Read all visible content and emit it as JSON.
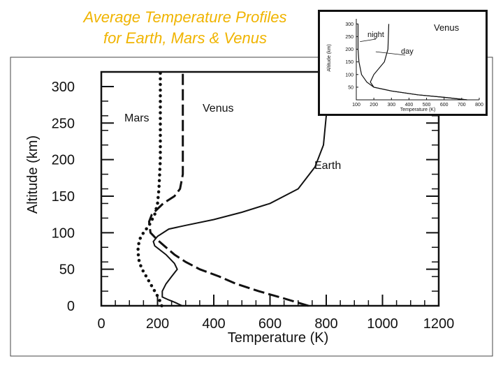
{
  "title_line1": "Average Temperature Profiles",
  "title_line2": "for Earth, Mars & Venus",
  "chart_data": [
    {
      "type": "line",
      "xlabel": "Temperature (K)",
      "ylabel": "Altitude (km)",
      "xlim": [
        0,
        1200
      ],
      "ylim": [
        0,
        320
      ],
      "xticks": [
        0,
        200,
        400,
        600,
        800,
        1000,
        1200
      ],
      "yticks": [
        0,
        50,
        100,
        150,
        200,
        250,
        300
      ],
      "series": [
        {
          "name": "Earth",
          "style": "solid",
          "x": [
            288,
            260,
            240,
            217,
            217,
            230,
            250,
            270,
            260,
            230,
            190,
            185,
            200,
            240,
            300,
            400,
            500,
            600,
            700,
            760,
            790,
            800,
            810,
            820
          ],
          "y": [
            0,
            5,
            8,
            12,
            20,
            30,
            40,
            50,
            58,
            70,
            82,
            88,
            95,
            105,
            110,
            118,
            128,
            140,
            160,
            190,
            220,
            260,
            300,
            320
          ]
        },
        {
          "name": "Venus",
          "style": "dashed",
          "x": [
            737,
            650,
            560,
            480,
            420,
            350,
            300,
            260,
            230,
            200,
            175,
            170,
            180,
            220,
            260,
            280,
            290,
            290,
            290,
            290
          ],
          "y": [
            0,
            10,
            20,
            30,
            40,
            50,
            60,
            70,
            80,
            90,
            100,
            115,
            125,
            140,
            150,
            160,
            180,
            220,
            260,
            320
          ]
        },
        {
          "name": "Mars",
          "style": "dotted",
          "x": [
            215,
            205,
            190,
            175,
            160,
            145,
            135,
            130,
            135,
            150,
            170,
            190,
            200,
            205,
            210,
            210,
            210,
            210
          ],
          "y": [
            0,
            10,
            20,
            30,
            40,
            50,
            60,
            75,
            90,
            100,
            110,
            125,
            140,
            160,
            200,
            240,
            280,
            320
          ]
        }
      ]
    },
    {
      "type": "line",
      "title": "Venus",
      "xlabel": "Temperature (K)",
      "ylabel": "Altitude (km)",
      "xlim": [
        100,
        800
      ],
      "ylim": [
        0,
        320
      ],
      "xticks": [
        100,
        200,
        300,
        400,
        500,
        600,
        700,
        800
      ],
      "yticks": [
        50,
        100,
        150,
        200,
        250,
        300
      ],
      "series": [
        {
          "name": "night",
          "x": [
            730,
            600,
            450,
            300,
            200,
            160,
            130,
            115,
            110,
            110
          ],
          "y": [
            0,
            10,
            20,
            35,
            50,
            70,
            100,
            150,
            200,
            300
          ]
        },
        {
          "name": "day",
          "x": [
            730,
            600,
            450,
            300,
            200,
            180,
            200,
            260,
            280,
            285
          ],
          "y": [
            0,
            10,
            20,
            35,
            50,
            70,
            100,
            150,
            200,
            300
          ]
        }
      ]
    }
  ]
}
